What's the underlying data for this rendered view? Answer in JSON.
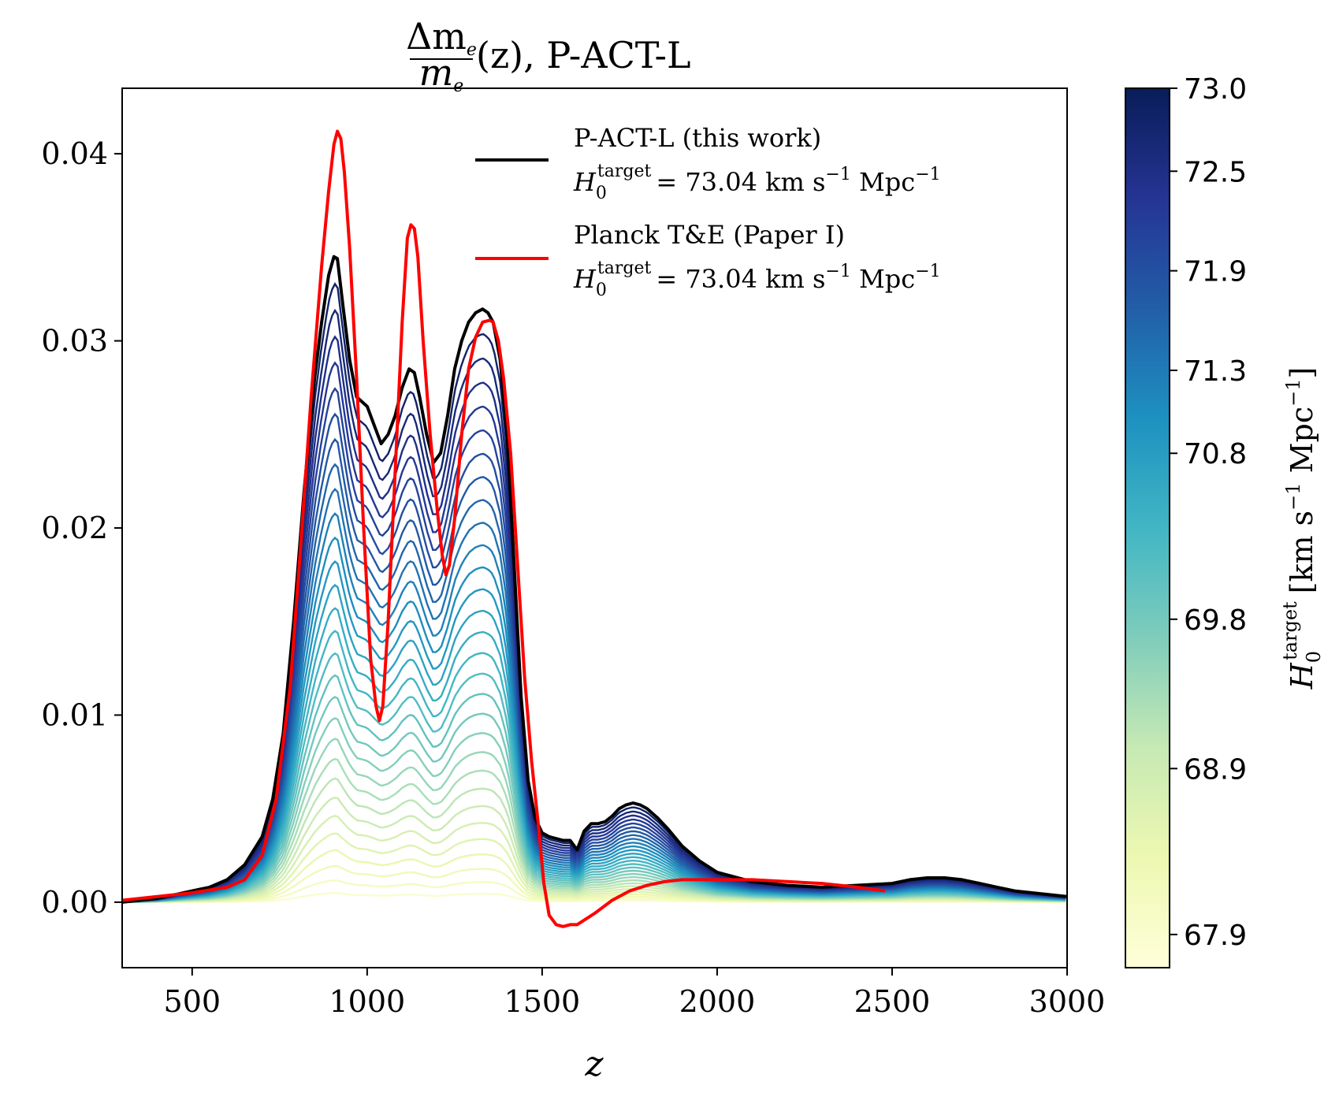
{
  "chart_data": {
    "type": "line",
    "title": {
      "frac_num": "Δm",
      "frac_num_sub": "e",
      "frac_den": "m",
      "frac_den_sub": "e",
      "rest": "(z), P-ACT-L"
    },
    "xlabel": "z",
    "ylabel": "",
    "xlim": [
      300,
      3000
    ],
    "ylim": [
      -0.0035,
      0.0435
    ],
    "xticks": [
      500,
      1000,
      1500,
      2000,
      2500,
      3000
    ],
    "xtick_labels": [
      "500",
      "1000",
      "1500",
      "2000",
      "2500",
      "3000"
    ],
    "yticks": [
      0.0,
      0.01,
      0.02,
      0.03,
      0.04
    ],
    "ytick_labels": [
      "0.00",
      "0.01",
      "0.02",
      "0.03",
      "0.04"
    ],
    "grid": false,
    "legend": {
      "placement": "top-right",
      "entries": [
        {
          "line1": "P-ACT-L (this work)",
          "h0_symbol": "H",
          "h0_sub": "0",
          "h0_sup": "target",
          "h0_value": "= 73.04 km s",
          "unit_exp": "−1",
          "unit_rest": " Mpc",
          "unit_exp2": "−1",
          "color": "#000000"
        },
        {
          "line1": "Planck T&E (Paper I)",
          "h0_symbol": "H",
          "h0_sub": "0",
          "h0_sup": "target",
          "h0_value": "= 73.04 km s",
          "unit_exp": "−1",
          "unit_rest": " Mpc",
          "unit_exp2": "−1",
          "color": "#ff0000"
        }
      ]
    },
    "colorbar": {
      "cmap": "YlGnBu",
      "range": [
        67.7,
        73.0
      ],
      "ticks": [
        67.9,
        68.9,
        69.8,
        70.8,
        71.3,
        71.9,
        72.5,
        73.0
      ],
      "tick_labels": [
        "67.9",
        "68.9",
        "69.8",
        "70.8",
        "71.3",
        "71.9",
        "72.5",
        "73.0"
      ],
      "label_symbol": "H",
      "label_sub": "0",
      "label_sup": "target",
      "label_units": "[km s",
      "label_exp": "−1",
      "label_units2": " Mpc",
      "label_exp2": "−1",
      "label_close": "]"
    },
    "series": [
      {
        "name": "P-ACT-L (this work)",
        "color": "#000000",
        "x": [
          300,
          350,
          400,
          450,
          500,
          550,
          600,
          650,
          700,
          730,
          760,
          790,
          820,
          850,
          870,
          890,
          905,
          915,
          930,
          950,
          970,
          1000,
          1020,
          1040,
          1060,
          1080,
          1100,
          1120,
          1135,
          1150,
          1170,
          1190,
          1210,
          1230,
          1250,
          1270,
          1290,
          1310,
          1330,
          1345,
          1360,
          1380,
          1400,
          1420,
          1440,
          1460,
          1480,
          1500,
          1520,
          1540,
          1560,
          1580,
          1600,
          1620,
          1640,
          1660,
          1680,
          1700,
          1720,
          1740,
          1760,
          1780,
          1800,
          1830,
          1860,
          1900,
          1950,
          2000,
          2100,
          2200,
          2300,
          2400,
          2500,
          2550,
          2600,
          2650,
          2700,
          2750,
          2800,
          2850,
          2900,
          2950,
          3000
        ],
        "y": [
          0.0,
          0.0001,
          0.0002,
          0.0004,
          0.0006,
          0.0008,
          0.0012,
          0.002,
          0.0035,
          0.0055,
          0.009,
          0.015,
          0.022,
          0.028,
          0.031,
          0.0335,
          0.0345,
          0.0344,
          0.032,
          0.029,
          0.027,
          0.0265,
          0.0255,
          0.0245,
          0.025,
          0.026,
          0.0275,
          0.0285,
          0.0283,
          0.027,
          0.025,
          0.0235,
          0.024,
          0.026,
          0.0285,
          0.03,
          0.031,
          0.0315,
          0.0317,
          0.0315,
          0.031,
          0.029,
          0.025,
          0.018,
          0.011,
          0.0065,
          0.0045,
          0.0037,
          0.0035,
          0.0034,
          0.0033,
          0.0033,
          0.0028,
          0.0038,
          0.0042,
          0.0042,
          0.0043,
          0.0046,
          0.005,
          0.0052,
          0.0053,
          0.0052,
          0.005,
          0.0045,
          0.0039,
          0.003,
          0.0022,
          0.0016,
          0.0011,
          0.0009,
          0.0008,
          0.0009,
          0.001,
          0.0012,
          0.0013,
          0.0013,
          0.0012,
          0.001,
          0.0008,
          0.0006,
          0.0005,
          0.0004,
          0.0003
        ]
      },
      {
        "name": "Planck T&E (Paper I)",
        "color": "#ff0000",
        "x": [
          300,
          400,
          500,
          600,
          650,
          700,
          740,
          780,
          810,
          840,
          870,
          890,
          905,
          915,
          925,
          935,
          950,
          970,
          990,
          1010,
          1025,
          1035,
          1045,
          1060,
          1080,
          1100,
          1115,
          1125,
          1135,
          1145,
          1160,
          1180,
          1200,
          1215,
          1225,
          1235,
          1250,
          1270,
          1290,
          1310,
          1330,
          1350,
          1360,
          1375,
          1390,
          1410,
          1430,
          1450,
          1470,
          1490,
          1505,
          1520,
          1540,
          1560,
          1580,
          1600,
          1650,
          1700,
          1750,
          1800,
          1850,
          1900,
          1950,
          2000,
          2100,
          2200,
          2300,
          2400,
          2480
        ],
        "y": [
          0.0001,
          0.0003,
          0.0005,
          0.0008,
          0.0012,
          0.0025,
          0.0055,
          0.0115,
          0.019,
          0.027,
          0.034,
          0.038,
          0.0405,
          0.0412,
          0.0408,
          0.039,
          0.035,
          0.028,
          0.02,
          0.013,
          0.0105,
          0.0097,
          0.0105,
          0.015,
          0.023,
          0.031,
          0.0355,
          0.0362,
          0.036,
          0.0345,
          0.03,
          0.025,
          0.021,
          0.0185,
          0.0175,
          0.018,
          0.0205,
          0.025,
          0.0285,
          0.0302,
          0.031,
          0.0311,
          0.031,
          0.03,
          0.028,
          0.024,
          0.018,
          0.012,
          0.0075,
          0.004,
          0.001,
          -0.0007,
          -0.0012,
          -0.0013,
          -0.0012,
          -0.0012,
          -0.0006,
          0.0001,
          0.0006,
          0.0009,
          0.0011,
          0.0012,
          0.0012,
          0.0012,
          0.0012,
          0.0011,
          0.001,
          0.0008,
          0.0006
        ]
      }
    ]
  }
}
